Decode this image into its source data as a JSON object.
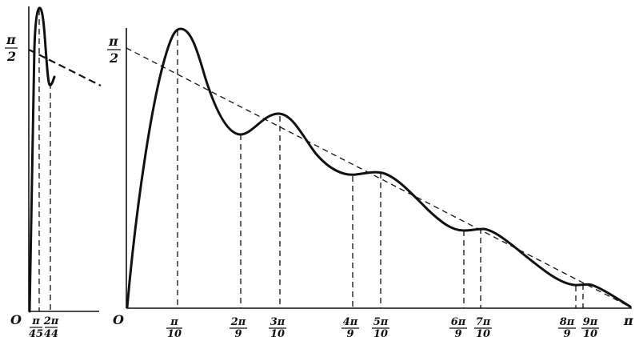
{
  "labels": {
    "origin_left": "O",
    "origin_right": "O",
    "pi_half_num": "π",
    "pi_half_den": "2",
    "x_end": "π"
  },
  "left_ticks": [
    {
      "num": "π",
      "den": "45"
    },
    {
      "num": "2π",
      "den": "44"
    }
  ],
  "right_ticks": [
    {
      "num": "π",
      "den": "10"
    },
    {
      "num": "2π",
      "den": "9"
    },
    {
      "num": "3π",
      "den": "10"
    },
    {
      "num": "4π",
      "den": "9"
    },
    {
      "num": "5π",
      "den": "10"
    },
    {
      "num": "6π",
      "den": "9"
    },
    {
      "num": "7π",
      "den": "10"
    },
    {
      "num": "8π",
      "den": "9"
    },
    {
      "num": "9π",
      "den": "10"
    }
  ]
}
